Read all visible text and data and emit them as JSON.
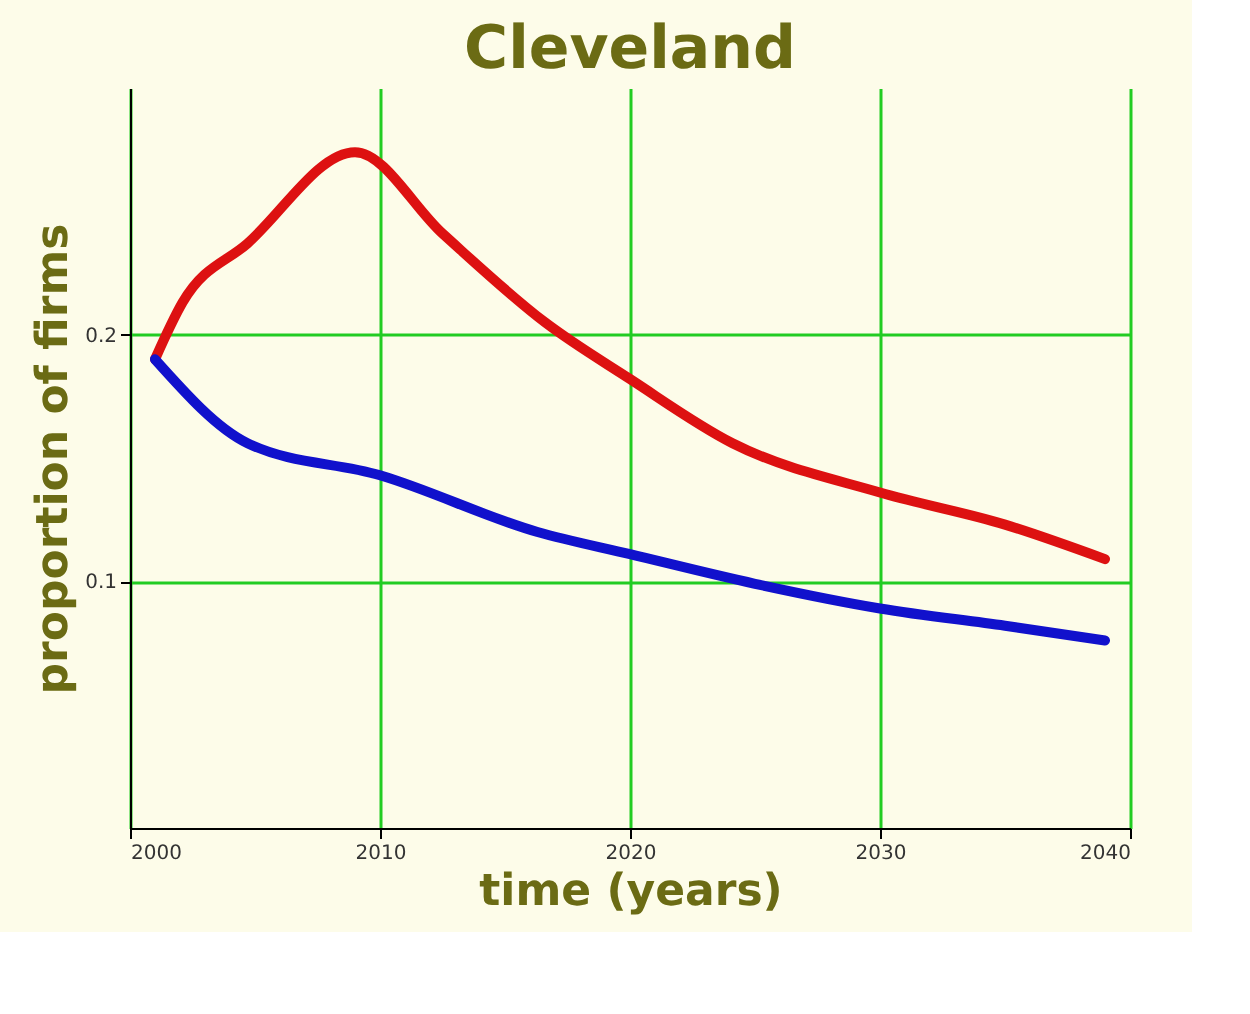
{
  "chart_data": {
    "type": "line",
    "title": "Cleveland",
    "xlabel": "time (years)",
    "ylabel": "proportion of firms",
    "xlim": [
      2000,
      2040
    ],
    "xticks": [
      2000,
      2010,
      2020,
      2030,
      2040
    ],
    "ylim": [
      0,
      0.3
    ],
    "yticks": [
      0.1,
      0.2
    ],
    "grid": true,
    "marker": "none",
    "line_style": "solid",
    "series": [
      {
        "color": "#dd1111",
        "x": [
          2001,
          2002.1,
          2004.7,
          2009,
          2012.5,
          2016.6,
          2020,
          2024.1,
          2030,
          2035,
          2039
        ],
        "values": [
          0.19,
          0.213,
          0.237,
          0.274,
          0.241,
          0.205,
          0.182,
          0.156,
          0.136,
          0.123,
          0.109
        ]
      },
      {
        "color": "#1111cc",
        "x": [
          2001,
          2004.7,
          2010,
          2016.3,
          2020,
          2025,
          2030,
          2035,
          2039
        ],
        "values": [
          0.19,
          0.156,
          0.143,
          0.12,
          0.111,
          0.099,
          0.089,
          0.082,
          0.076
        ]
      }
    ]
  }
}
